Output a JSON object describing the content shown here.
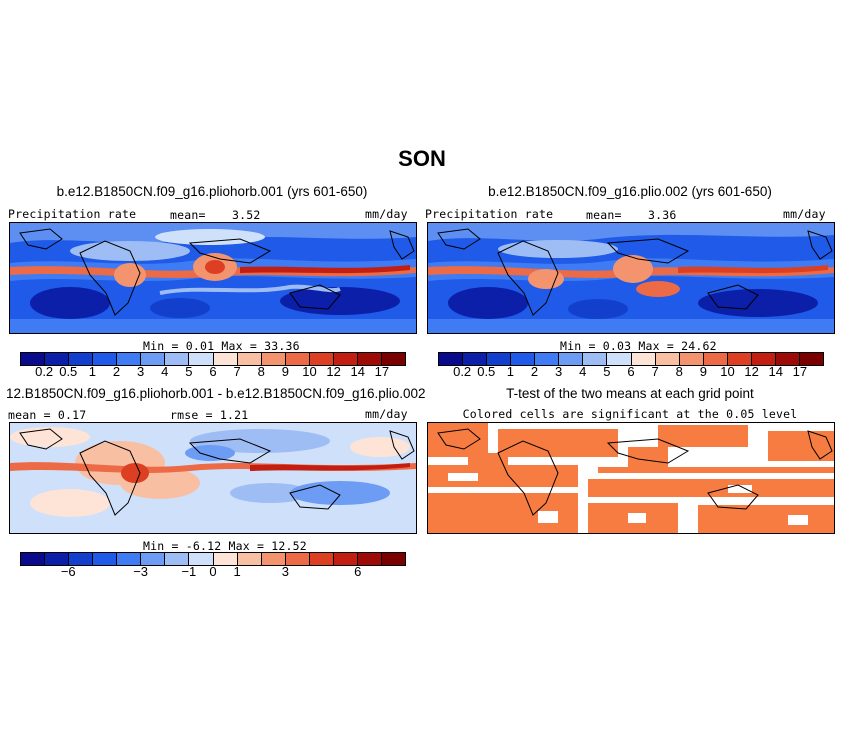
{
  "title": "SON",
  "panels": [
    {
      "title": "b.e12.B1850CN.f09_g16.pliohorb.001 (yrs 601-650)",
      "left_label": "Precipitation rate",
      "mean_label": "mean=",
      "mean_value": "3.52",
      "units": "mm/day",
      "minmax": "Min =   0.01 Max =  33.36"
    },
    {
      "title": "b.e12.B1850CN.f09_g16.plio.002 (yrs 601-650)",
      "left_label": "Precipitation rate",
      "mean_label": "mean=",
      "mean_value": "3.36",
      "units": "mm/day",
      "minmax": "Min =   0.03 Max =  24.62"
    },
    {
      "title": "12.B1850CN.f09_g16.pliohorb.001 - b.e12.B1850CN.f09_g16.plio.002",
      "left_label": "mean =  0.17",
      "center_label": "rmse =  1.21",
      "units": "mm/day",
      "minmax": "Min =  -6.12 Max =  12.52"
    },
    {
      "title": "T-test of the two means at each grid point",
      "subtitle": "Colored cells are significant at the 0.05 level"
    }
  ],
  "colorbar_precip": {
    "ticks": [
      "0.2",
      "0.5",
      "1",
      "2",
      "3",
      "4",
      "5",
      "6",
      "7",
      "8",
      "9",
      "10",
      "12",
      "14",
      "17"
    ],
    "colors": [
      "#0a0a8c",
      "#0c1fa8",
      "#1240cc",
      "#1f5ae8",
      "#3f7cf3",
      "#6d9cf5",
      "#9dbdf4",
      "#cfe0fb",
      "#fde4d6",
      "#f8bfa3",
      "#f3946f",
      "#ec6a45",
      "#dd3f23",
      "#c21e12",
      "#9e0b06",
      "#7a0000"
    ]
  },
  "colorbar_diff": {
    "ticks": [
      "−6",
      "−3",
      "−1",
      "0",
      "1",
      "3",
      "6"
    ],
    "colors": [
      "#0a0a8c",
      "#0c1fa8",
      "#1240cc",
      "#1f5ae8",
      "#3f7cf3",
      "#6d9cf5",
      "#9dbdf4",
      "#cfe0fb",
      "#fde4d6",
      "#f8bfa3",
      "#f3946f",
      "#ec6a45",
      "#dd3f23",
      "#c21e12",
      "#9e0b06",
      "#7a0000"
    ]
  },
  "colors": {
    "ttest_fill": "#f77c42",
    "coast": "#000000"
  }
}
